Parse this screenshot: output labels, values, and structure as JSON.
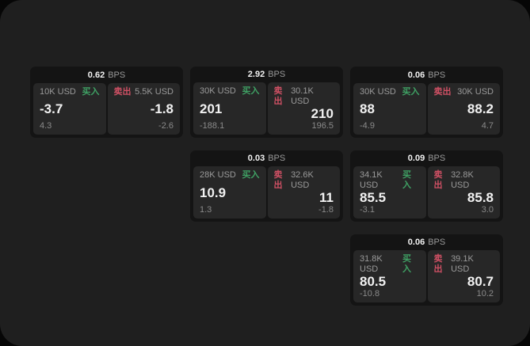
{
  "labels": {
    "bps_suffix": "BPS",
    "buy": "买入",
    "sell": "卖出"
  },
  "colors": {
    "panel_bg": "#1f1f1f",
    "card_bg": "#141414",
    "tile_bg": "#272727",
    "buy_green": "#3fa164",
    "sell_red": "#cf5064",
    "text_primary": "#f2f2f2",
    "text_muted": "#9a9a9a",
    "text_dim": "#8a8a8a"
  },
  "cards": [
    {
      "bps": "0.62",
      "col": 1,
      "row": 1,
      "buy": {
        "notional": "10K USD",
        "price": "-3.7",
        "delta": "4.3"
      },
      "sell": {
        "notional": "5.5K USD",
        "price": "-1.8",
        "delta": "-2.6"
      }
    },
    {
      "bps": "2.92",
      "col": 2,
      "row": 1,
      "buy": {
        "notional": "30K USD",
        "price": "201",
        "delta": "-188.1"
      },
      "sell": {
        "notional": "30.1K USD",
        "price": "210",
        "delta": "196.5"
      }
    },
    {
      "bps": "0.06",
      "col": 3,
      "row": 1,
      "buy": {
        "notional": "30K USD",
        "price": "88",
        "delta": "-4.9"
      },
      "sell": {
        "notional": "30K USD",
        "price": "88.2",
        "delta": "4.7"
      }
    },
    {
      "bps": "0.03",
      "col": 2,
      "row": 2,
      "buy": {
        "notional": "28K USD",
        "price": "10.9",
        "delta": "1.3"
      },
      "sell": {
        "notional": "32.6K USD",
        "price": "11",
        "delta": "-1.8"
      }
    },
    {
      "bps": "0.09",
      "col": 3,
      "row": 2,
      "buy": {
        "notional": "34.1K USD",
        "price": "85.5",
        "delta": "-3.1"
      },
      "sell": {
        "notional": "32.8K USD",
        "price": "85.8",
        "delta": "3.0"
      }
    },
    {
      "bps": "0.06",
      "col": 3,
      "row": 3,
      "buy": {
        "notional": "31.8K USD",
        "price": "80.5",
        "delta": "-10.8"
      },
      "sell": {
        "notional": "39.1K USD",
        "price": "80.7",
        "delta": "10.2"
      }
    }
  ]
}
